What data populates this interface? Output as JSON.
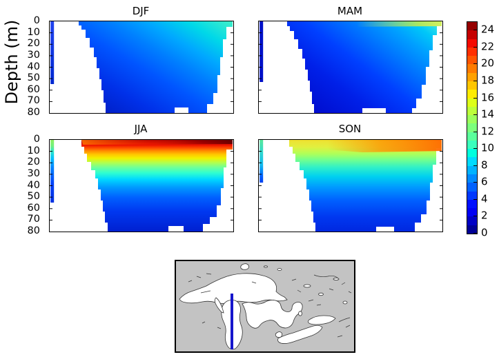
{
  "figure": {
    "ylabel": "Depth (m)",
    "panels": [
      {
        "id": "djf",
        "title": "DJF"
      },
      {
        "id": "mam",
        "title": "MAM"
      },
      {
        "id": "jja",
        "title": "JJA"
      },
      {
        "id": "son",
        "title": "SON"
      }
    ],
    "depth_ticks": [
      "0",
      "10",
      "20",
      "30",
      "40",
      "50",
      "60",
      "70",
      "80"
    ],
    "colorbar": {
      "ticks": [
        "0",
        "2",
        "4",
        "6",
        "8",
        "10",
        "12",
        "14",
        "16",
        "18",
        "20",
        "22",
        "24"
      ],
      "range_min": 0,
      "range_max": 25,
      "colormap": "jet",
      "segment_colors": [
        "#000096",
        "#0000C5",
        "#0000F4",
        "#000FFF",
        "#0038FF",
        "#0061FF",
        "#008AFF",
        "#00B3FF",
        "#00DBFF",
        "#00FFDE",
        "#3AFFBD",
        "#5BFF9C",
        "#7CFF7C",
        "#9CFF5B",
        "#BDFF3A",
        "#DEFF19",
        "#FFEC00",
        "#FFC600",
        "#FFA100",
        "#FF7B00",
        "#FF5500",
        "#FF2F00",
        "#F40900",
        "#C50000",
        "#960000"
      ]
    }
  },
  "map": {
    "land_color": "#C3C3C3",
    "water_color": "#FFFFFF",
    "coast_color": "#333333",
    "transect_color": "#1616CC"
  },
  "chart_data": {
    "type": "heatmap",
    "subtype": "seasonal filled-contour depth transects with inset location map",
    "title": "",
    "panels": [
      "DJF",
      "MAM",
      "JJA",
      "SON"
    ],
    "xlabel": "",
    "ylabel": "Depth (m)",
    "ylim": [
      80,
      0
    ],
    "depth_ticks": [
      0,
      10,
      20,
      30,
      40,
      50,
      60,
      70,
      80
    ],
    "grid": false,
    "colorbar": {
      "position": "right",
      "range": [
        0,
        25
      ],
      "tick_step": 2,
      "ticks": [
        0,
        2,
        4,
        6,
        8,
        10,
        12,
        14,
        16,
        18,
        20,
        22,
        24
      ],
      "colormap": "jet",
      "units": "deg C (implied)"
    },
    "series": [
      {
        "name": "DJF",
        "depths": [
          0,
          10,
          20,
          30,
          40,
          50,
          60,
          70,
          80
        ],
        "temp_west": [
          3,
          3,
          3,
          3,
          3,
          3,
          3,
          3,
          3
        ],
        "temp_mid": [
          5,
          5,
          4,
          4,
          4,
          4,
          3,
          3,
          3
        ],
        "temp_east": [
          9,
          8,
          8,
          7,
          7,
          6,
          6,
          5,
          5
        ]
      },
      {
        "name": "MAM",
        "depths": [
          0,
          10,
          20,
          30,
          40,
          50,
          60,
          70,
          80
        ],
        "temp_west": [
          2,
          2,
          2,
          2,
          2,
          2,
          2,
          2,
          2
        ],
        "temp_mid": [
          4,
          4,
          3,
          3,
          3,
          3,
          3,
          2,
          2
        ],
        "temp_east": [
          15,
          8,
          7,
          7,
          6,
          6,
          5,
          5,
          4
        ]
      },
      {
        "name": "JJA",
        "depths": [
          0,
          10,
          20,
          30,
          40,
          50,
          60,
          70,
          80
        ],
        "temp_west": [
          23,
          20,
          13,
          9,
          7,
          6,
          5,
          4,
          4
        ],
        "temp_mid": [
          24,
          21,
          14,
          10,
          8,
          6,
          5,
          4,
          4
        ],
        "temp_east": [
          25,
          22,
          16,
          12,
          9,
          7,
          6,
          5,
          4
        ]
      },
      {
        "name": "SON",
        "depths": [
          0,
          10,
          20,
          30,
          40,
          50,
          60,
          70,
          80
        ],
        "temp_west": [
          14,
          13,
          12,
          10,
          8,
          7,
          6,
          5,
          4
        ],
        "temp_mid": [
          15,
          14,
          12,
          10,
          9,
          7,
          6,
          5,
          4
        ],
        "temp_east": [
          18,
          16,
          14,
          12,
          10,
          8,
          7,
          6,
          5
        ]
      }
    ],
    "notes": "Values estimated from jet colorbar (0-25, ticks every 2). X axis is unlabeled distance along a north-south transect; shallow nearshore region on the left is masked white, with a thin data strip at the far-left edge of each panel.",
    "inset_map": {
      "region": "Laurentian Great Lakes",
      "transect": "blue vertical line through Lake Michigan"
    }
  }
}
